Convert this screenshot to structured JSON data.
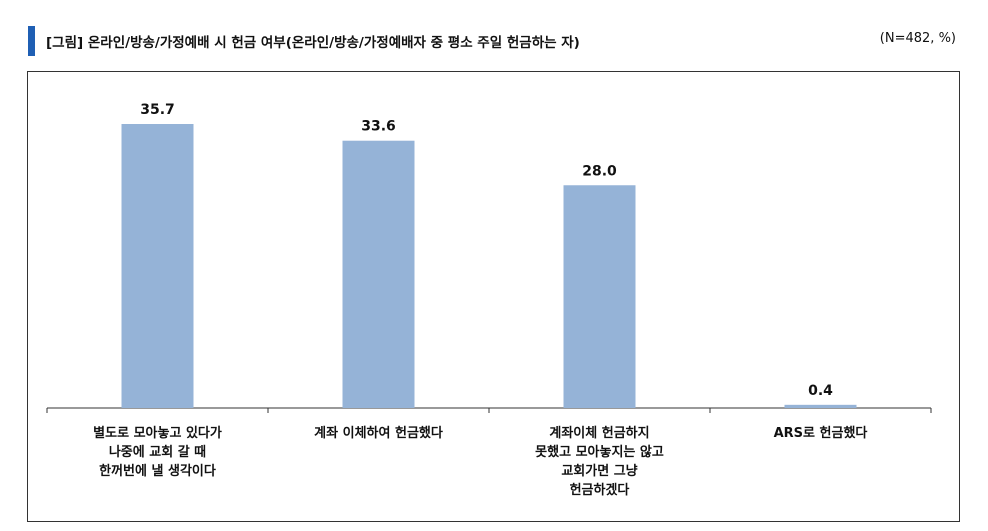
{
  "header": {
    "title": "[그림] 온라인/방송/가정예배 시 헌금 여부(온라인/방송/가정예배자 중 평소 주일 헌금하는 자)",
    "note": "(N=482, %)",
    "accent_color": "#1f5fb4"
  },
  "chart_data": {
    "type": "bar",
    "categories": [
      "별도로 모아놓고 있다가\n나중에 교회 갈 때\n한꺼번에 낼 생각이다",
      "계좌 이체하여 헌금했다",
      "계좌이체 헌금하지\n못했고 모아놓지는 않고\n교회가면 그냥\n헌금하겠다",
      "ARS로 헌금했다"
    ],
    "values": [
      35.7,
      33.6,
      28.0,
      0.4
    ],
    "value_labels": [
      "35.7",
      "33.6",
      "28.0",
      "0.4"
    ],
    "bar_color": "#95b3d7",
    "ylim": [
      0,
      40
    ],
    "grid": false,
    "legend": "none"
  }
}
